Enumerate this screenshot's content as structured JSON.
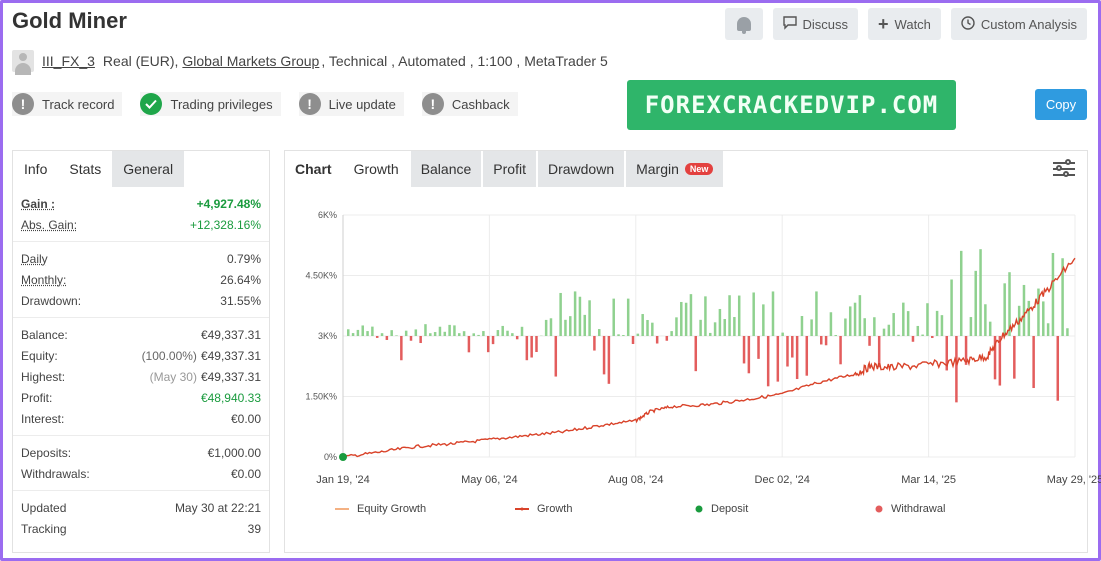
{
  "header": {
    "title": "Gold Miner",
    "discuss": "Discuss",
    "watch": "Watch",
    "custom": "Custom Analysis"
  },
  "account": {
    "username": "III_FX_3",
    "type": "Real (EUR),",
    "broker": "Global Markets Group",
    "rest": ", Technical , Automated , 1:100 , MetaTrader 5"
  },
  "badges": [
    "Track record",
    "Trading privileges",
    "Live update",
    "Cashback"
  ],
  "watermark": "FOREXCRACKEDVIP.COM",
  "copy": "Copy",
  "left_tabs": [
    "Info",
    "Stats",
    "General"
  ],
  "stats": {
    "gain_k": "Gain :",
    "gain_v": "+4,927.48%",
    "abs_k": "Abs. Gain:",
    "abs_v": "+12,328.16%",
    "daily_k": "Daily",
    "daily_v": "0.79%",
    "monthly_k": "Monthly:",
    "monthly_v": "26.64%",
    "dd_k": "Drawdown:",
    "dd_v": "31.55%",
    "balance_k": "Balance:",
    "balance_v": "€49,337.31",
    "equity_k": "Equity:",
    "equity_pct": "(100.00%)",
    "equity_v": "€49,337.31",
    "highest_k": "Highest:",
    "highest_date": "(May 30)",
    "highest_v": "€49,337.31",
    "profit_k": "Profit:",
    "profit_v": "€48,940.33",
    "interest_k": "Interest:",
    "interest_v": "€0.00",
    "deposits_k": "Deposits:",
    "deposits_v": "€1,000.00",
    "withdrawals_k": "Withdrawals:",
    "withdrawals_v": "€0.00",
    "updated_k": "Updated",
    "updated_v": "May 30 at 22:21",
    "tracking_k": "Tracking",
    "tracking_v": "39"
  },
  "chart_tabs": [
    "Chart",
    "Growth",
    "Balance",
    "Profit",
    "Drawdown",
    "Margin"
  ],
  "new_badge": "New",
  "colors": {
    "growth": "#d9432a",
    "deposit": "#1a9b3e",
    "positive_bar": "#8fd18f",
    "negative_bar": "#e35d5d",
    "watermark": "#2fb56a"
  },
  "chart_data": {
    "type": "line",
    "x_ticks": [
      "Jan 19, '24",
      "May 06, '24",
      "Aug 08, '24",
      "Dec 02, '24",
      "Mar 14, '25",
      "May 29, '25"
    ],
    "y_ticks": [
      "0%",
      "1.50K%",
      "3K%",
      "4.50K%",
      "6K%"
    ],
    "ylim": [
      0,
      6000
    ],
    "series": [
      {
        "name": "Equity Growth",
        "values": []
      },
      {
        "name": "Growth",
        "x": [
          0,
          0.05,
          0.1,
          0.15,
          0.2,
          0.25,
          0.3,
          0.35,
          0.4,
          0.42,
          0.45,
          0.5,
          0.55,
          0.6,
          0.65,
          0.7,
          0.72,
          0.75,
          0.8,
          0.85,
          0.88,
          0.9,
          0.93,
          0.96,
          1.0
        ],
        "values": [
          0,
          120,
          260,
          330,
          430,
          530,
          620,
          780,
          900,
          1130,
          1250,
          1300,
          1420,
          1560,
          1850,
          2060,
          2250,
          2220,
          2290,
          2380,
          2500,
          2980,
          3500,
          4100,
          4930
        ]
      },
      {
        "name": "Deposit",
        "values": [
          1000
        ]
      },
      {
        "name": "Withdrawal",
        "values": []
      }
    ],
    "legend": [
      "Equity Growth",
      "Growth",
      "Deposit",
      "Withdrawal"
    ]
  }
}
